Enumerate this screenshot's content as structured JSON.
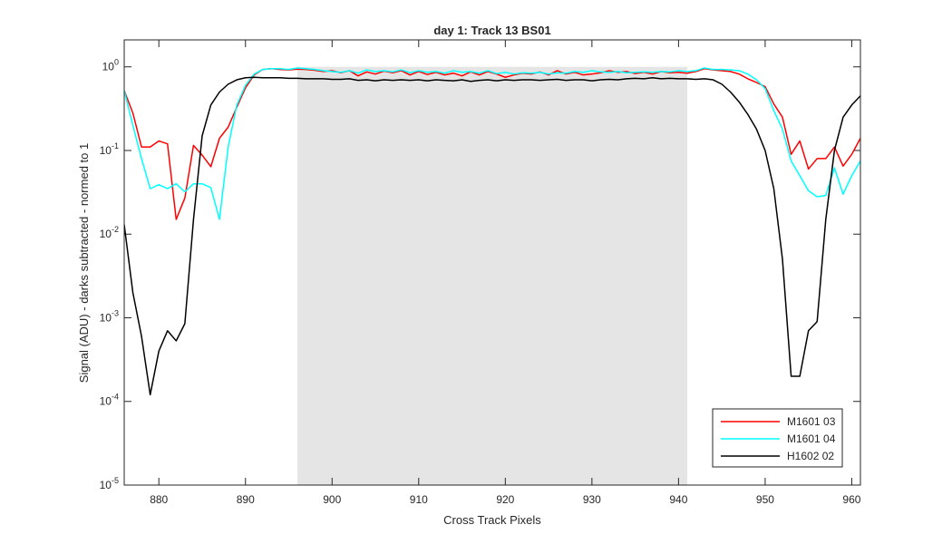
{
  "chart_data": {
    "type": "line",
    "title": "day 1: Track 13  BS01",
    "x_label": "Cross Track Pixels",
    "y_label": "Signal (ADU) - darks subtracted - normed to 1",
    "y_scale": "log",
    "grid": false,
    "legend_position": "southeast",
    "x": [
      876,
      877,
      878,
      879,
      880,
      881,
      882,
      883,
      884,
      885,
      886,
      887,
      888,
      889,
      890,
      891,
      892,
      893,
      894,
      895,
      896,
      897,
      898,
      899,
      900,
      901,
      902,
      903,
      904,
      905,
      906,
      907,
      908,
      909,
      910,
      911,
      912,
      913,
      914,
      915,
      916,
      917,
      918,
      919,
      920,
      921,
      922,
      923,
      924,
      925,
      926,
      927,
      928,
      929,
      930,
      931,
      932,
      933,
      934,
      935,
      936,
      937,
      938,
      939,
      940,
      941,
      942,
      943,
      944,
      945,
      946,
      947,
      948,
      949,
      950,
      951,
      952,
      953,
      954,
      955,
      956,
      957,
      958,
      959,
      960,
      961
    ],
    "xlim": [
      876,
      961
    ],
    "xticks": [
      880,
      890,
      900,
      910,
      920,
      930,
      940,
      950,
      960
    ],
    "ylim": [
      1e-05,
      2.1
    ],
    "yticks": [
      {
        "value": 1e-05,
        "label": "10^-5"
      },
      {
        "value": 0.0001,
        "label": "10^-4"
      },
      {
        "value": 0.001,
        "label": "10^-3"
      },
      {
        "value": 0.01,
        "label": "10^-2"
      },
      {
        "value": 0.1,
        "label": "10^-1"
      },
      {
        "value": 1,
        "label": "10^0"
      }
    ],
    "shaded_region": {
      "x": [
        896,
        941
      ],
      "y": [
        1e-05,
        1
      ],
      "color": "#e5e5e5"
    },
    "series": [
      {
        "name": "M1601 03",
        "color": "#ff0000",
        "values": [
          0.52,
          0.28,
          0.11,
          0.11,
          0.13,
          0.12,
          0.015,
          0.027,
          0.115,
          0.088,
          0.064,
          0.14,
          0.19,
          0.33,
          0.56,
          0.8,
          0.93,
          0.95,
          0.93,
          0.92,
          0.94,
          0.93,
          0.91,
          0.88,
          0.9,
          0.85,
          0.9,
          0.78,
          0.87,
          0.82,
          0.89,
          0.85,
          0.9,
          0.8,
          0.88,
          0.81,
          0.86,
          0.8,
          0.84,
          0.78,
          0.87,
          0.8,
          0.88,
          0.82,
          0.75,
          0.8,
          0.84,
          0.82,
          0.87,
          0.8,
          0.9,
          0.82,
          0.86,
          0.8,
          0.82,
          0.85,
          0.9,
          0.86,
          0.88,
          0.83,
          0.86,
          0.82,
          0.88,
          0.85,
          0.86,
          0.84,
          0.88,
          0.95,
          0.92,
          0.9,
          0.88,
          0.82,
          0.72,
          0.65,
          0.58,
          0.36,
          0.25,
          0.09,
          0.13,
          0.06,
          0.08,
          0.08,
          0.11,
          0.065,
          0.09,
          0.14
        ]
      },
      {
        "name": "M1601 04",
        "color": "#00ffff",
        "values": [
          0.52,
          0.2,
          0.08,
          0.035,
          0.039,
          0.035,
          0.04,
          0.032,
          0.04,
          0.04,
          0.036,
          0.015,
          0.11,
          0.35,
          0.6,
          0.82,
          0.93,
          0.95,
          0.95,
          0.93,
          0.97,
          0.95,
          0.93,
          0.9,
          0.88,
          0.86,
          0.9,
          0.84,
          0.92,
          0.88,
          0.9,
          0.87,
          0.92,
          0.85,
          0.9,
          0.86,
          0.88,
          0.84,
          0.9,
          0.86,
          0.88,
          0.84,
          0.9,
          0.83,
          0.86,
          0.82,
          0.85,
          0.84,
          0.86,
          0.82,
          0.85,
          0.84,
          0.88,
          0.86,
          0.9,
          0.87,
          0.86,
          0.88,
          0.85,
          0.86,
          0.87,
          0.86,
          0.88,
          0.87,
          0.9,
          0.88,
          0.9,
          0.97,
          0.93,
          0.93,
          0.92,
          0.9,
          0.82,
          0.7,
          0.55,
          0.3,
          0.18,
          0.075,
          0.05,
          0.033,
          0.028,
          0.029,
          0.062,
          0.03,
          0.05,
          0.075
        ]
      },
      {
        "name": "H1602 02",
        "color": "#000000",
        "values": [
          0.013,
          0.002,
          0.0006,
          0.00012,
          0.0004,
          0.0007,
          0.00053,
          0.00085,
          0.015,
          0.15,
          0.35,
          0.5,
          0.62,
          0.7,
          0.74,
          0.75,
          0.74,
          0.74,
          0.74,
          0.73,
          0.73,
          0.72,
          0.72,
          0.72,
          0.71,
          0.71,
          0.72,
          0.69,
          0.7,
          0.68,
          0.7,
          0.69,
          0.7,
          0.69,
          0.7,
          0.68,
          0.7,
          0.69,
          0.68,
          0.7,
          0.67,
          0.69,
          0.7,
          0.68,
          0.7,
          0.69,
          0.7,
          0.7,
          0.69,
          0.7,
          0.71,
          0.69,
          0.7,
          0.7,
          0.68,
          0.7,
          0.71,
          0.7,
          0.72,
          0.73,
          0.72,
          0.74,
          0.72,
          0.73,
          0.72,
          0.72,
          0.71,
          0.72,
          0.7,
          0.62,
          0.5,
          0.38,
          0.27,
          0.18,
          0.1,
          0.035,
          0.005,
          0.0002,
          0.0002,
          0.0007,
          0.0009,
          0.015,
          0.1,
          0.25,
          0.35,
          0.45
        ]
      }
    ]
  }
}
